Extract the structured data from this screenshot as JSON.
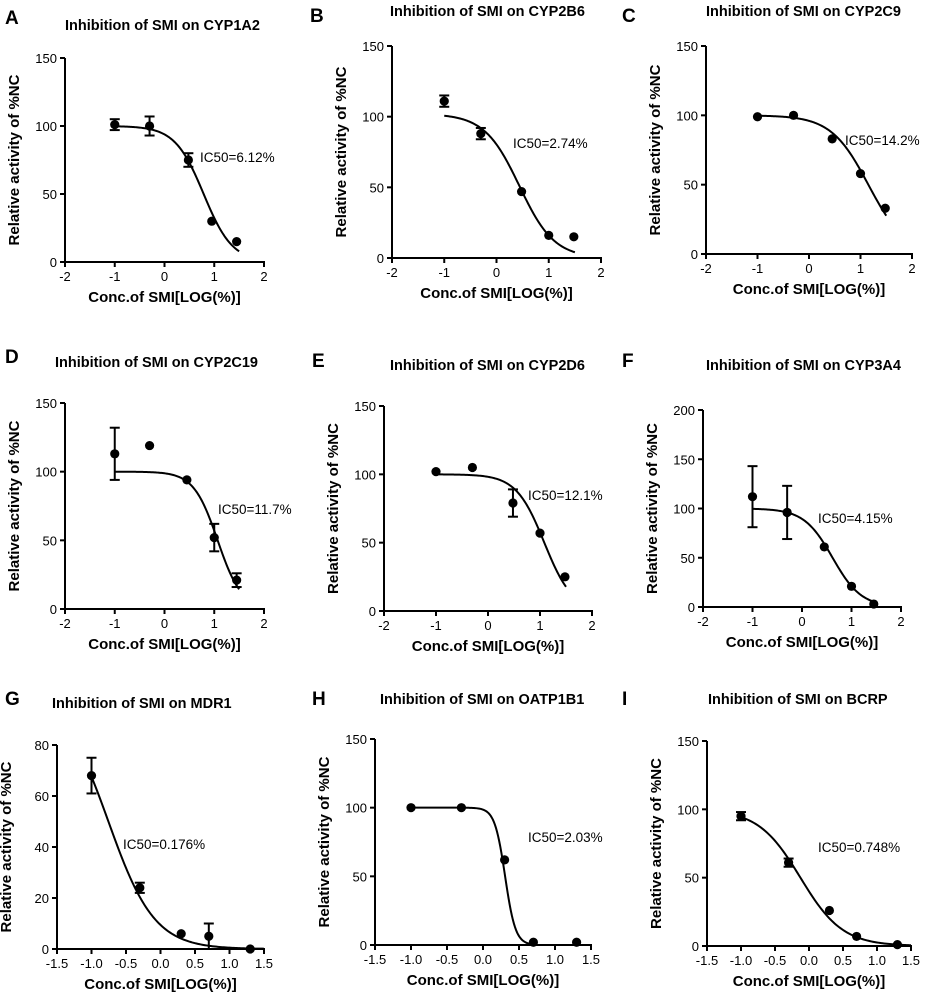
{
  "chart_data": [
    {
      "type": "scatter",
      "panel_label": "A",
      "title": "Inhibition of SMI on CYP1A2",
      "xlabel": "Conc.of SMI[LOG(%)]",
      "ylabel": "Relative activity of %NC",
      "xlim": [
        -2,
        2
      ],
      "ylim": [
        0,
        150
      ],
      "xticks": [
        "-2",
        "-1",
        "0",
        "1",
        "2"
      ],
      "yticks": [
        "0",
        "50",
        "100",
        "150"
      ],
      "x": [
        -1,
        -0.3,
        0.48,
        0.95,
        1.45
      ],
      "y": [
        101,
        100,
        75,
        30,
        15
      ],
      "err": [
        4,
        7,
        5,
        0,
        0
      ],
      "annotation": "IC50=6.12%",
      "fit": {
        "top": 100,
        "bottom": 0,
        "log_ic50": 0.787,
        "hill": 1.5
      }
    },
    {
      "type": "scatter",
      "panel_label": "B",
      "title": "Inhibition of SMI on CYP2B6",
      "xlabel": "Conc.of SMI[LOG(%)]",
      "ylabel": "Relative activity of %NC",
      "xlim": [
        -2,
        2
      ],
      "ylim": [
        0,
        150
      ],
      "xticks": [
        "-2",
        "-1",
        "0",
        "1",
        "2"
      ],
      "yticks": [
        "0",
        "50",
        "100",
        "150"
      ],
      "x": [
        -1,
        -0.3,
        0.48,
        1.0,
        1.48
      ],
      "y": [
        111,
        88,
        47,
        16,
        15
      ],
      "err": [
        4,
        4,
        0,
        0,
        0
      ],
      "annotation": "IC50=2.74%",
      "fit": {
        "top": 102,
        "bottom": 0,
        "log_ic50": 0.438,
        "hill": 1.3
      }
    },
    {
      "type": "scatter",
      "panel_label": "C",
      "title": "Inhibition of SMI on CYP2C9",
      "xlabel": "Conc.of SMI[LOG(%)]",
      "ylabel": "Relative activity of %NC",
      "xlim": [
        -2,
        2
      ],
      "ylim": [
        0,
        150
      ],
      "xticks": [
        "-2",
        "-1",
        "0",
        "1",
        "2"
      ],
      "yticks": [
        "0",
        "50",
        "100",
        "150"
      ],
      "x": [
        -1,
        -0.3,
        0.45,
        1.0,
        1.48
      ],
      "y": [
        99,
        100,
        83,
        58,
        33
      ],
      "err": [
        0,
        0,
        0,
        0,
        0
      ],
      "annotation": "IC50=14.2%",
      "fit": {
        "top": 100,
        "bottom": 0,
        "log_ic50": 1.152,
        "hill": 1.2
      }
    },
    {
      "type": "scatter",
      "panel_label": "D",
      "title": "Inhibition of SMI on CYP2C19",
      "xlabel": "Conc.of SMI[LOG(%)]",
      "ylabel": "Relative activity of %NC",
      "xlim": [
        -2,
        2
      ],
      "ylim": [
        0,
        150
      ],
      "xticks": [
        "-2",
        "-1",
        "0",
        "1",
        "2"
      ],
      "yticks": [
        "0",
        "50",
        "100",
        "150"
      ],
      "x": [
        -1,
        -0.3,
        0.45,
        1.0,
        1.45
      ],
      "y": [
        113,
        119,
        94,
        52,
        21
      ],
      "err": [
        19,
        0,
        0,
        10,
        5
      ],
      "annotation": "IC50=11.7%",
      "fit": {
        "top": 100,
        "bottom": 0,
        "log_ic50": 1.068,
        "hill": 1.8
      }
    },
    {
      "type": "scatter",
      "panel_label": "E",
      "title": "Inhibition of SMI on CYP2D6",
      "xlabel": "Conc.of SMI[LOG(%)]",
      "ylabel": "Relative activity of %NC",
      "xlim": [
        -2,
        2
      ],
      "ylim": [
        0,
        150
      ],
      "xticks": [
        "-2",
        "-1",
        "0",
        "1",
        "2"
      ],
      "yticks": [
        "0",
        "50",
        "100",
        "150"
      ],
      "x": [
        -1,
        -0.3,
        0.48,
        1.0,
        1.48
      ],
      "y": [
        102,
        105,
        79,
        57,
        25
      ],
      "err": [
        0,
        0,
        10,
        0,
        0
      ],
      "annotation": "IC50=12.1%",
      "fit": {
        "top": 100,
        "bottom": 0,
        "log_ic50": 1.083,
        "hill": 1.6
      }
    },
    {
      "type": "scatter",
      "panel_label": "F",
      "title": "Inhibition of SMI on CYP3A4",
      "xlabel": "Conc.of SMI[LOG(%)]",
      "ylabel": "Relative activity of %NC",
      "xlim": [
        -2,
        2
      ],
      "ylim": [
        0,
        200
      ],
      "xticks": [
        "-2",
        "-1",
        "0",
        "1",
        "2"
      ],
      "yticks": [
        "0",
        "50",
        "100",
        "150",
        "200"
      ],
      "x": [
        -1,
        -0.3,
        0.45,
        1.0,
        1.45
      ],
      "y": [
        112,
        96,
        61,
        21,
        3
      ],
      "err": [
        31,
        27,
        0,
        0,
        0
      ],
      "annotation": "IC50=4.15%",
      "fit": {
        "top": 100,
        "bottom": 0,
        "log_ic50": 0.618,
        "hill": 1.5
      }
    },
    {
      "type": "scatter",
      "panel_label": "G",
      "title": "Inhibition of SMI on MDR1",
      "xlabel": "Conc.of SMI[LOG(%)]",
      "ylabel": "Relative activity of %NC",
      "xlim": [
        -1.5,
        1.5
      ],
      "ylim": [
        0,
        80
      ],
      "xticks": [
        "-1.5",
        "-1.0",
        "-0.5",
        "0.0",
        "0.5",
        "1.0",
        "1.5"
      ],
      "yticks": [
        "0",
        "20",
        "40",
        "60",
        "80"
      ],
      "x": [
        -1,
        -0.3,
        0.3,
        0.7,
        1.3
      ],
      "y": [
        68,
        24,
        6,
        5,
        0
      ],
      "err": [
        7,
        2,
        0,
        5,
        0
      ],
      "annotation": "IC50=0.176%",
      "fit": {
        "top": 100,
        "bottom": 0,
        "log_ic50": -0.755,
        "hill": 1.3,
        "x_start": -1.0
      }
    },
    {
      "type": "scatter",
      "panel_label": "H",
      "title": "Inhibition of SMI on OATP1B1",
      "xlabel": "Conc.of SMI[LOG(%)]",
      "ylabel": "Relative activity of %NC",
      "xlim": [
        -1.5,
        1.5
      ],
      "ylim": [
        0,
        150
      ],
      "xticks": [
        "-1.5",
        "-1.0",
        "-0.5",
        "0.0",
        "0.5",
        "1.0",
        "1.5"
      ],
      "yticks": [
        "0",
        "50",
        "100",
        "150"
      ],
      "x": [
        -1,
        -0.3,
        0.3,
        0.7,
        1.3
      ],
      "y": [
        100,
        100,
        62,
        2,
        2
      ],
      "err": [
        0,
        0,
        0,
        0,
        0
      ],
      "annotation": "IC50=2.03%",
      "fit": {
        "top": 100,
        "bottom": 0,
        "log_ic50": 0.307,
        "hill": 6.0,
        "x_end": 0.75
      }
    },
    {
      "type": "scatter",
      "panel_label": "I",
      "title": "Inhibition of SMI on BCRP",
      "xlabel": "Conc.of SMI[LOG(%)]",
      "ylabel": "Relative activity of %NC",
      "xlim": [
        -1.5,
        1.5
      ],
      "ylim": [
        0,
        150
      ],
      "xticks": [
        "-1.5",
        "-1.0",
        "-0.5",
        "0.0",
        "0.5",
        "1.0",
        "1.5"
      ],
      "yticks": [
        "0",
        "50",
        "100",
        "150"
      ],
      "x": [
        -1,
        -0.3,
        0.3,
        0.7,
        1.3
      ],
      "y": [
        95,
        61,
        26,
        7,
        1
      ],
      "err": [
        3,
        3,
        0,
        0,
        0
      ],
      "annotation": "IC50=0.748%",
      "fit": {
        "top": 100,
        "bottom": 0,
        "log_ic50": -0.126,
        "hill": 1.4,
        "x_start": -1.0
      }
    }
  ]
}
